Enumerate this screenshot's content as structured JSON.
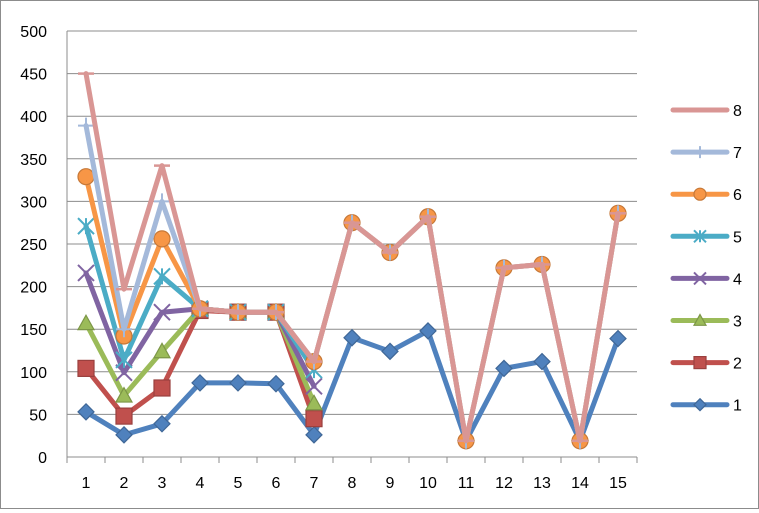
{
  "chart_data": {
    "type": "line",
    "title": "",
    "xlabel": "",
    "ylabel": "",
    "ylim": [
      0,
      500
    ],
    "yticks": [
      0,
      50,
      100,
      150,
      200,
      250,
      300,
      350,
      400,
      450,
      500
    ],
    "categories": [
      "1",
      "2",
      "3",
      "4",
      "5",
      "6",
      "7",
      "8",
      "9",
      "10",
      "11",
      "12",
      "13",
      "14",
      "15"
    ],
    "legend_position": "right",
    "grid": true,
    "series": [
      {
        "name": "1",
        "color": "#4f81bd",
        "marker": "diamond",
        "values": [
          53,
          26,
          39,
          87,
          87,
          86,
          26,
          140,
          124,
          148,
          19,
          104,
          112,
          19,
          139
        ]
      },
      {
        "name": "2",
        "color": "#c0504d",
        "marker": "square",
        "values": [
          104,
          48,
          81,
          172,
          170,
          170,
          45,
          null,
          null,
          null,
          null,
          null,
          null,
          null,
          null
        ]
      },
      {
        "name": "3",
        "color": "#9bbb59",
        "marker": "triangle",
        "values": [
          157,
          72,
          124,
          174,
          170,
          170,
          63,
          null,
          null,
          null,
          null,
          null,
          null,
          null,
          null
        ]
      },
      {
        "name": "4",
        "color": "#8064a2",
        "marker": "x",
        "values": [
          216,
          99,
          170,
          174,
          170,
          170,
          83,
          null,
          null,
          null,
          null,
          null,
          null,
          null,
          null
        ]
      },
      {
        "name": "5",
        "color": "#4bacc6",
        "marker": "star",
        "values": [
          271,
          114,
          212,
          174,
          170,
          170,
          102,
          null,
          null,
          null,
          null,
          null,
          null,
          null,
          null
        ]
      },
      {
        "name": "6",
        "color": "#f79646",
        "marker": "circle",
        "values": [
          329,
          142,
          256,
          174,
          170,
          170,
          112,
          275,
          240,
          282,
          19,
          222,
          226,
          19,
          286
        ]
      },
      {
        "name": "7",
        "color": "#a4b9da",
        "marker": "plus",
        "values": [
          389,
          150,
          300,
          174,
          170,
          170,
          112,
          275,
          240,
          282,
          19,
          222,
          226,
          19,
          286
        ]
      },
      {
        "name": "8",
        "color": "#d99694",
        "marker": "dash",
        "values": [
          450,
          197,
          342,
          174,
          170,
          170,
          112,
          275,
          240,
          282,
          19,
          222,
          226,
          19,
          286
        ]
      }
    ]
  }
}
